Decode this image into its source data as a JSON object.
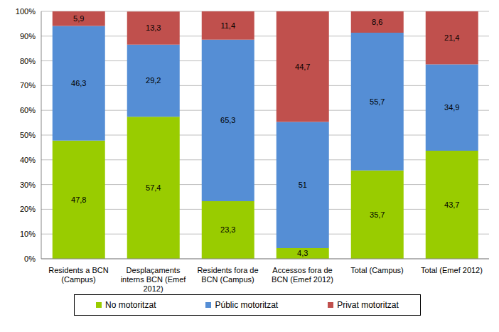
{
  "chart_data": {
    "type": "bar",
    "stacked": true,
    "grid": true,
    "legend": "bottom",
    "data_labels": true,
    "categories": [
      "Residents a BCN (Campus)",
      "Desplaçaments interns BCN (Emef 2012)",
      "Residents fora de BCN (Campus)",
      "Accessos fora de BCN (Emef 2012)",
      "Total (Campus)",
      "Total (Emef 2012)"
    ],
    "series": [
      {
        "name": "No motoritzat",
        "color": "#99cc00",
        "values": [
          47.8,
          57.4,
          23.3,
          4.3,
          35.7,
          43.7
        ],
        "value_labels": [
          "47,8",
          "57,4",
          "23,3",
          "4,3",
          "35,7",
          "43,7"
        ]
      },
      {
        "name": "Públic motoritzat",
        "color": "#558ed5",
        "values": [
          46.3,
          29.2,
          65.3,
          51,
          55.7,
          34.9
        ],
        "value_labels": [
          "46,3",
          "29,2",
          "65,3",
          "51",
          "55,7",
          "34,9"
        ]
      },
      {
        "name": "Privat motoritzat",
        "color": "#c0504d",
        "values": [
          5.9,
          13.3,
          11.4,
          44.7,
          8.6,
          21.4
        ],
        "value_labels": [
          "5,9",
          "13,3",
          "11,4",
          "44,7",
          "8,6",
          "21,4"
        ]
      }
    ],
    "ylim": [
      0,
      100
    ],
    "yticks": [
      {
        "value": 0,
        "label": "0%"
      },
      {
        "value": 10,
        "label": "10%"
      },
      {
        "value": 20,
        "label": "20%"
      },
      {
        "value": 30,
        "label": "30%"
      },
      {
        "value": 40,
        "label": "40%"
      },
      {
        "value": 50,
        "label": "50%"
      },
      {
        "value": 60,
        "label": "60%"
      },
      {
        "value": 70,
        "label": "70%"
      },
      {
        "value": 80,
        "label": "80%"
      },
      {
        "value": 90,
        "label": "90%"
      },
      {
        "value": 100,
        "label": "100%"
      }
    ]
  }
}
